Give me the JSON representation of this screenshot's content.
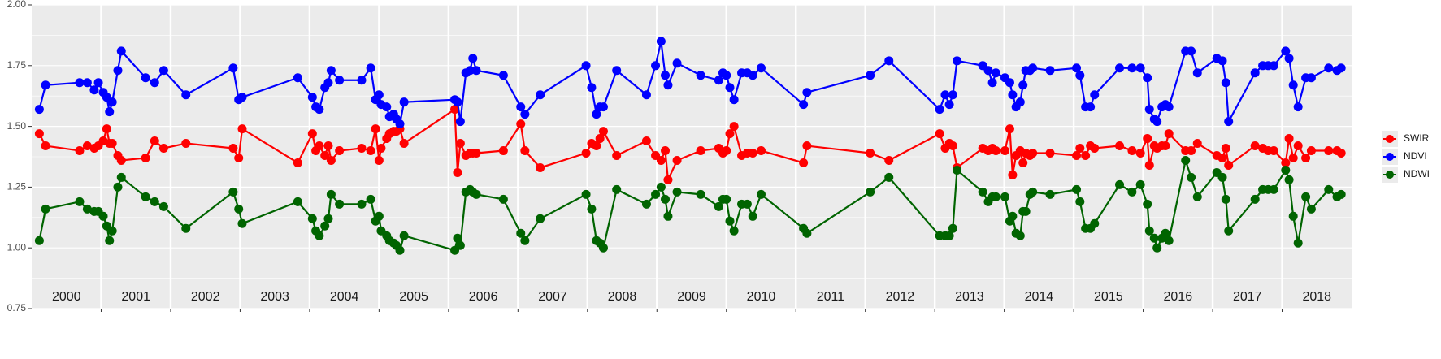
{
  "chart_data": {
    "type": "line",
    "x": [
      2000.11,
      2000.2,
      2000.69,
      2000.8,
      2000.9,
      2000.96,
      2001.03,
      2001.08,
      2001.12,
      2001.16,
      2001.24,
      2001.29,
      2001.64,
      2001.77,
      2001.9,
      2002.22,
      2002.9,
      2002.98,
      2003.03,
      2003.83,
      2004.04,
      2004.09,
      2004.14,
      2004.22,
      2004.27,
      2004.31,
      2004.43,
      2004.75,
      2004.88,
      2004.95,
      2005.0,
      2005.03,
      2005.11,
      2005.15,
      2005.21,
      2005.25,
      2005.3,
      2005.36,
      2006.09,
      2006.13,
      2006.17,
      2006.25,
      2006.31,
      2006.35,
      2006.4,
      2006.79,
      2007.04,
      2007.1,
      2007.32,
      2007.98,
      2008.06,
      2008.13,
      2008.18,
      2008.23,
      2008.42,
      2008.85,
      2008.98,
      2009.06,
      2009.12,
      2009.16,
      2009.29,
      2009.63,
      2009.89,
      2009.95,
      2010.0,
      2010.05,
      2010.11,
      2010.22,
      2010.3,
      2010.38,
      2010.5,
      2011.11,
      2011.16,
      2012.07,
      2012.34,
      2013.07,
      2013.15,
      2013.21,
      2013.26,
      2013.32,
      2013.69,
      2013.77,
      2013.83,
      2013.88,
      2014.01,
      2014.08,
      2014.12,
      2014.17,
      2014.23,
      2014.27,
      2014.31,
      2014.37,
      2014.41,
      2014.66,
      2015.04,
      2015.09,
      2015.17,
      2015.24,
      2015.3,
      2015.66,
      2015.84,
      2015.96,
      2016.06,
      2016.09,
      2016.16,
      2016.2,
      2016.27,
      2016.32,
      2016.37,
      2016.61,
      2016.69,
      2016.78,
      2017.06,
      2017.14,
      2017.19,
      2017.23,
      2017.61,
      2017.72,
      2017.8,
      2017.88,
      2018.05,
      2018.1,
      2018.16,
      2018.23,
      2018.34,
      2018.42,
      2018.67,
      2018.79,
      2018.85
    ],
    "series": [
      {
        "name": "SWIR",
        "color": "#ff0000",
        "values": [
          1.47,
          1.42,
          1.4,
          1.42,
          1.41,
          1.42,
          1.44,
          1.49,
          1.43,
          1.43,
          1.38,
          1.36,
          1.37,
          1.44,
          1.41,
          1.43,
          1.41,
          1.37,
          1.49,
          1.35,
          1.47,
          1.4,
          1.42,
          1.38,
          1.42,
          1.36,
          1.4,
          1.41,
          1.4,
          1.49,
          1.36,
          1.41,
          1.45,
          1.47,
          1.48,
          1.48,
          1.49,
          1.43,
          1.57,
          1.31,
          1.43,
          1.38,
          1.39,
          1.39,
          1.39,
          1.4,
          1.51,
          1.4,
          1.33,
          1.39,
          1.43,
          1.42,
          1.45,
          1.48,
          1.38,
          1.44,
          1.38,
          1.36,
          1.4,
          1.28,
          1.36,
          1.4,
          1.41,
          1.39,
          1.4,
          1.47,
          1.5,
          1.38,
          1.39,
          1.39,
          1.4,
          1.35,
          1.42,
          1.39,
          1.36,
          1.47,
          1.41,
          1.43,
          1.42,
          1.33,
          1.41,
          1.4,
          1.41,
          1.4,
          1.4,
          1.49,
          1.3,
          1.38,
          1.4,
          1.35,
          1.39,
          1.38,
          1.39,
          1.39,
          1.38,
          1.41,
          1.38,
          1.42,
          1.41,
          1.42,
          1.4,
          1.39,
          1.45,
          1.34,
          1.42,
          1.41,
          1.42,
          1.42,
          1.47,
          1.4,
          1.4,
          1.43,
          1.38,
          1.37,
          1.41,
          1.34,
          1.42,
          1.41,
          1.4,
          1.4,
          1.35,
          1.45,
          1.37,
          1.42,
          1.37,
          1.4,
          1.4,
          1.4,
          1.39
        ]
      },
      {
        "name": "NDVI",
        "color": "#0000ff",
        "values": [
          1.57,
          1.67,
          1.68,
          1.68,
          1.65,
          1.68,
          1.64,
          1.62,
          1.56,
          1.6,
          1.73,
          1.81,
          1.7,
          1.68,
          1.73,
          1.63,
          1.74,
          1.61,
          1.62,
          1.7,
          1.62,
          1.58,
          1.57,
          1.66,
          1.68,
          1.73,
          1.69,
          1.69,
          1.74,
          1.61,
          1.63,
          1.59,
          1.58,
          1.54,
          1.55,
          1.53,
          1.51,
          1.6,
          1.61,
          1.6,
          1.52,
          1.72,
          1.73,
          1.78,
          1.73,
          1.71,
          1.58,
          1.55,
          1.63,
          1.75,
          1.66,
          1.55,
          1.58,
          1.58,
          1.73,
          1.63,
          1.75,
          1.85,
          1.71,
          1.67,
          1.76,
          1.71,
          1.69,
          1.72,
          1.71,
          1.66,
          1.61,
          1.72,
          1.72,
          1.71,
          1.74,
          1.59,
          1.64,
          1.71,
          1.77,
          1.57,
          1.63,
          1.59,
          1.63,
          1.77,
          1.75,
          1.73,
          1.68,
          1.72,
          1.7,
          1.68,
          1.63,
          1.58,
          1.6,
          1.67,
          1.73,
          1.73,
          1.74,
          1.73,
          1.74,
          1.71,
          1.58,
          1.58,
          1.63,
          1.74,
          1.74,
          1.74,
          1.7,
          1.57,
          1.53,
          1.52,
          1.58,
          1.59,
          1.58,
          1.81,
          1.81,
          1.72,
          1.78,
          1.77,
          1.68,
          1.52,
          1.72,
          1.75,
          1.75,
          1.75,
          1.81,
          1.78,
          1.67,
          1.58,
          1.7,
          1.7,
          1.74,
          1.73,
          1.74
        ]
      },
      {
        "name": "NDWI",
        "color": "#006400",
        "values": [
          1.03,
          1.16,
          1.19,
          1.16,
          1.15,
          1.15,
          1.13,
          1.09,
          1.03,
          1.07,
          1.25,
          1.29,
          1.21,
          1.19,
          1.17,
          1.08,
          1.23,
          1.16,
          1.1,
          1.19,
          1.12,
          1.07,
          1.05,
          1.09,
          1.12,
          1.22,
          1.18,
          1.18,
          1.2,
          1.11,
          1.13,
          1.07,
          1.05,
          1.03,
          1.02,
          1.01,
          0.99,
          1.05,
          0.99,
          1.04,
          1.01,
          1.23,
          1.24,
          1.23,
          1.22,
          1.2,
          1.06,
          1.03,
          1.12,
          1.22,
          1.16,
          1.03,
          1.02,
          1.0,
          1.24,
          1.18,
          1.22,
          1.25,
          1.2,
          1.13,
          1.23,
          1.22,
          1.17,
          1.2,
          1.2,
          1.11,
          1.07,
          1.18,
          1.18,
          1.13,
          1.22,
          1.08,
          1.06,
          1.23,
          1.29,
          1.05,
          1.05,
          1.05,
          1.08,
          1.32,
          1.23,
          1.19,
          1.21,
          1.21,
          1.21,
          1.11,
          1.13,
          1.06,
          1.05,
          1.15,
          1.15,
          1.22,
          1.23,
          1.22,
          1.24,
          1.19,
          1.08,
          1.08,
          1.1,
          1.26,
          1.23,
          1.26,
          1.18,
          1.07,
          1.04,
          1.0,
          1.04,
          1.06,
          1.03,
          1.36,
          1.29,
          1.21,
          1.31,
          1.29,
          1.2,
          1.07,
          1.2,
          1.24,
          1.24,
          1.24,
          1.32,
          1.28,
          1.13,
          1.02,
          1.21,
          1.16,
          1.24,
          1.21,
          1.22
        ]
      }
    ],
    "annotations": [
      "2000",
      "2001",
      "2002",
      "2003",
      "2004",
      "2005",
      "2006",
      "2007",
      "2008",
      "2009",
      "2010",
      "2011",
      "2012",
      "2013",
      "2014",
      "2015",
      "2016",
      "2017",
      "2018"
    ],
    "xlim": [
      2000,
      2019
    ],
    "xticks": [
      2001,
      2002,
      2003,
      2004,
      2005,
      2006,
      2007,
      2008,
      2009,
      2010,
      2011,
      2012,
      2013,
      2014,
      2015,
      2016,
      2017,
      2018
    ],
    "ylim": [
      0.75,
      2.0
    ],
    "yticks": [
      {
        "value": 0.75,
        "label": "0.75"
      },
      {
        "value": 1.0,
        "label": "1.00"
      },
      {
        "value": 1.25,
        "label": "1.25"
      },
      {
        "value": 1.5,
        "label": "1.50"
      },
      {
        "value": 1.75,
        "label": "1.75"
      },
      {
        "value": 2.0,
        "label": "2.00"
      }
    ],
    "grid": true,
    "legend": "right"
  }
}
